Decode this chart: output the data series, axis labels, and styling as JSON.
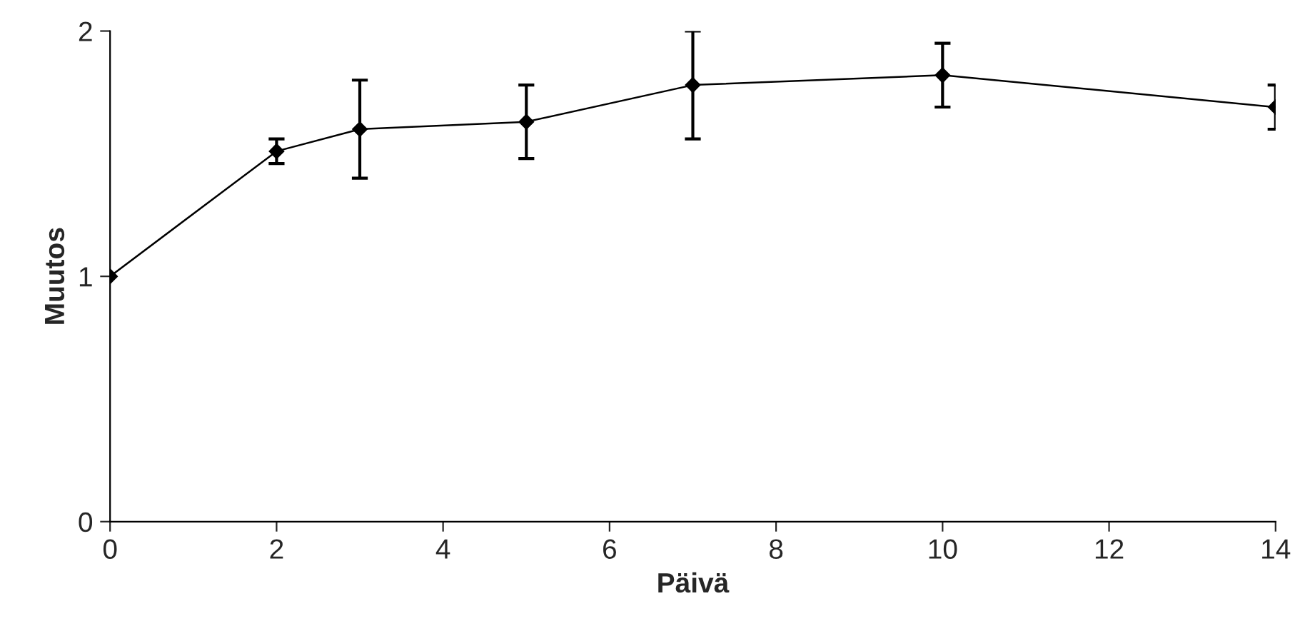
{
  "chart_data": {
    "type": "line",
    "xlabel": "Päivä",
    "ylabel": "Muutos",
    "x": [
      0,
      2,
      3,
      5,
      7,
      10,
      14
    ],
    "series": [
      {
        "color": "#000000",
        "values": [
          1.0,
          1.51,
          1.6,
          1.63,
          1.78,
          1.82,
          1.69
        ],
        "errors": [
          null,
          0.05,
          0.2,
          0.15,
          0.22,
          0.13,
          0.09
        ]
      }
    ],
    "xlim": [
      0,
      14
    ],
    "xticks": [
      0,
      2,
      4,
      6,
      8,
      10,
      12,
      14
    ],
    "ylim": [
      0,
      2
    ],
    "yticks": [
      0,
      1,
      2
    ],
    "marker": "diamond",
    "line_style": "solid",
    "grid": false,
    "legend": false
  }
}
